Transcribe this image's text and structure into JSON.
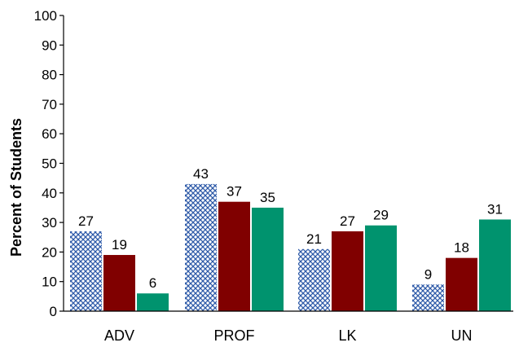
{
  "chart_data": {
    "type": "bar",
    "ylabel": "Percent of Students",
    "xlabel": "",
    "title": "",
    "ylim": [
      0,
      100
    ],
    "yticks": [
      0,
      10,
      20,
      30,
      40,
      50,
      60,
      70,
      80,
      90,
      100
    ],
    "categories": [
      "ADV",
      "PROF",
      "LK",
      "UN"
    ],
    "series": [
      {
        "values": [
          27,
          43,
          21,
          9
        ],
        "color": "#2e5aa8",
        "fill": "crosshatch"
      },
      {
        "values": [
          19,
          37,
          27,
          18
        ],
        "color": "#800000",
        "fill": "solid"
      },
      {
        "values": [
          6,
          35,
          29,
          31
        ],
        "color": "#00936e",
        "fill": "solid"
      }
    ],
    "grid": false,
    "legend": "none"
  }
}
